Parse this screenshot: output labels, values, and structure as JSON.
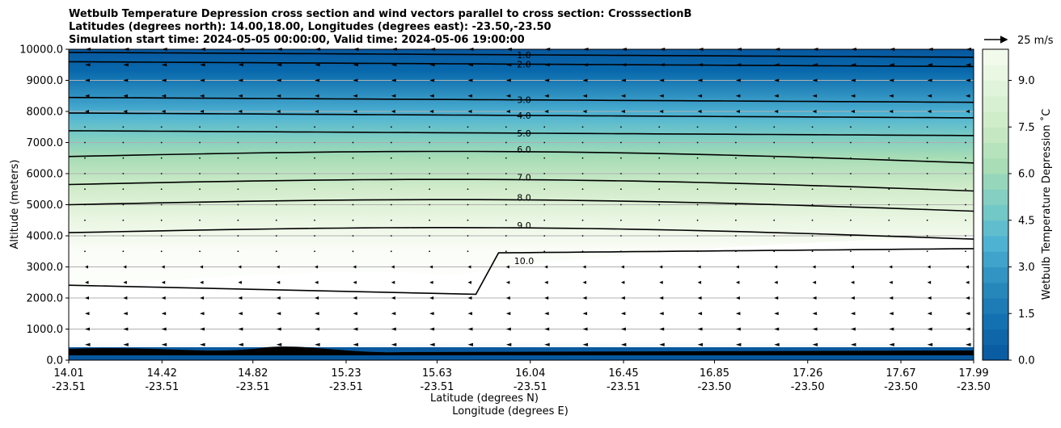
{
  "chart_data": {
    "type": "contour_cross_section",
    "title_lines": [
      "Wetbulb Temperature Depression cross section and wind vectors parallel to cross section: CrosssectionB",
      "Latitudes (degrees north): 14.00,18.00, Longitudes (degrees east): -23.50,-23.50",
      "Simulation start time: 2024-05-05 00:00:00, Valid time: 2024-05-06 19:00:00"
    ],
    "ylabel": "Altitude (meters)",
    "xlabel_lat": "Latitude (degrees N)",
    "xlabel_lon": "Longitude (degrees E)",
    "y_ticks": [
      "0.0",
      "1000.0",
      "2000.0",
      "3000.0",
      "4000.0",
      "5000.0",
      "6000.0",
      "7000.0",
      "8000.0",
      "9000.0",
      "10000.0"
    ],
    "ylim": [
      0,
      10000
    ],
    "x_ticks": [
      {
        "lat": "14.01",
        "lon": "-23.51"
      },
      {
        "lat": "14.42",
        "lon": "-23.51"
      },
      {
        "lat": "14.82",
        "lon": "-23.51"
      },
      {
        "lat": "15.23",
        "lon": "-23.51"
      },
      {
        "lat": "15.63",
        "lon": "-23.51"
      },
      {
        "lat": "16.04",
        "lon": "-23.51"
      },
      {
        "lat": "16.45",
        "lon": "-23.51"
      },
      {
        "lat": "16.85",
        "lon": "-23.50"
      },
      {
        "lat": "17.26",
        "lon": "-23.50"
      },
      {
        "lat": "17.67",
        "lon": "-23.50"
      },
      {
        "lat": "17.99",
        "lon": "-23.50"
      }
    ],
    "xlim": [
      14.01,
      17.99
    ],
    "colorbar": {
      "label": "Wetbulb Temperature Depression $^\\circ$C",
      "label_display": "Wetbulb Temperature Depression ˚C",
      "ticks": [
        "0.0",
        "1.5",
        "3.0",
        "4.5",
        "6.0",
        "7.5",
        "9.0"
      ],
      "range": [
        0,
        10
      ],
      "levels": 20
    },
    "quiver_key": "25 m/s",
    "contour_levels": [
      {
        "value": 1.0,
        "label": "1.0",
        "altitude_m": 9900
      },
      {
        "value": 2.0,
        "label": "2.0",
        "altitude_m": 9600
      },
      {
        "value": 3.0,
        "label": "3.0",
        "altitude_m": 8450
      },
      {
        "value": 4.0,
        "label": "4.0",
        "altitude_m": 7950
      },
      {
        "value": 5.0,
        "label": "5.0",
        "altitude_m": 7380
      },
      {
        "value": 6.0,
        "label": "6.0",
        "altitude_m": 6550
      },
      {
        "value": 7.0,
        "label": "7.0",
        "altitude_m": 5650
      },
      {
        "value": 8.0,
        "label": "8.0",
        "altitude_m": 5000
      },
      {
        "value": 9.0,
        "label": "9.0",
        "altitude_m": 4100
      },
      {
        "value": 10.0,
        "label": "10.0",
        "altitude_m": 3450
      }
    ],
    "grid": true
  },
  "colors": {
    "colormap": [
      "#08589e",
      "#1471b1",
      "#2b8cbe",
      "#4eb3d3",
      "#7bccc4",
      "#a8ddb5",
      "#ccebc5",
      "#e0f3db",
      "#f7fcf0"
    ],
    "contour": "#000000"
  }
}
